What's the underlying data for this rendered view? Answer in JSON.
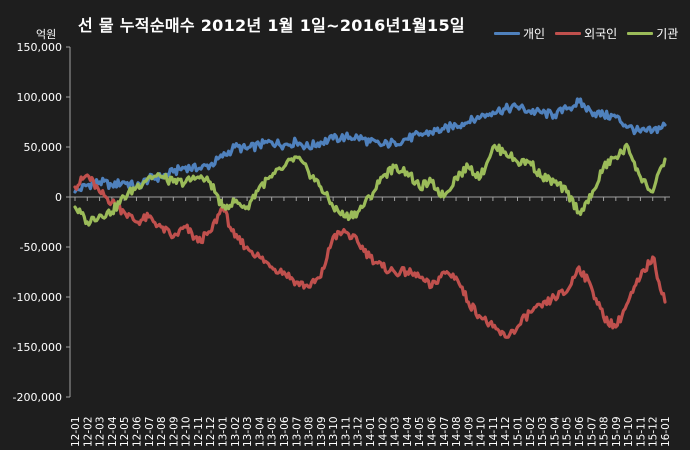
{
  "chart_data": {
    "type": "line",
    "title": "선 물 누적순매수 2012년 1월 1일~2016년1월15일",
    "y_unit": "억원",
    "ylim": [
      -200000,
      150000
    ],
    "y_ticks": [
      150000,
      100000,
      50000,
      0,
      -50000,
      -100000,
      -150000,
      -200000
    ],
    "y_tick_labels": [
      "150,000",
      "100,000",
      "50,000",
      "0",
      "-50,000",
      "-100,000",
      "-150,000",
      "-200,000"
    ],
    "legend_position": "top-right",
    "grid": false,
    "categories": [
      "12-01",
      "12-02",
      "12-03",
      "12-04",
      "12-05",
      "12-06",
      "12-07",
      "12-08",
      "12-09",
      "12-10",
      "12-11",
      "12-12",
      "13-01",
      "13-02",
      "13-03",
      "13-04",
      "13-05",
      "13-06",
      "13-07",
      "13-08",
      "13-09",
      "13-10",
      "13-11",
      "13-12",
      "14-01",
      "14-02",
      "14-03",
      "14-04",
      "14-05",
      "14-06",
      "14-07",
      "14-08",
      "14-09",
      "14-10",
      "14-11",
      "14-12",
      "15-01",
      "15-02",
      "15-03",
      "15-04",
      "15-05",
      "15-06",
      "15-07",
      "15-08",
      "15-09",
      "15-10",
      "15-11",
      "15-12",
      "16-01"
    ],
    "series": [
      {
        "name": "개인",
        "color": "#4f81bd",
        "values": [
          5000,
          12000,
          15000,
          12000,
          15000,
          10000,
          18000,
          20000,
          25000,
          30000,
          28000,
          32000,
          40000,
          50000,
          48000,
          52000,
          55000,
          52000,
          55000,
          50000,
          55000,
          58000,
          60000,
          60000,
          55000,
          52000,
          55000,
          58000,
          62000,
          65000,
          68000,
          72000,
          75000,
          80000,
          85000,
          88000,
          90000,
          86000,
          84000,
          82000,
          88000,
          95000,
          85000,
          82000,
          80000,
          70000,
          65000,
          66000,
          72000
        ]
      },
      {
        "name": "외국인",
        "color": "#c0504d",
        "values": [
          10000,
          22000,
          5000,
          -5000,
          -15000,
          -25000,
          -20000,
          -30000,
          -40000,
          -30000,
          -45000,
          -35000,
          -10000,
          -40000,
          -50000,
          -60000,
          -70000,
          -75000,
          -85000,
          -90000,
          -80000,
          -40000,
          -35000,
          -45000,
          -60000,
          -70000,
          -75000,
          -75000,
          -80000,
          -90000,
          -75000,
          -80000,
          -105000,
          -120000,
          -130000,
          -140000,
          -130000,
          -115000,
          -110000,
          -100000,
          -95000,
          -70000,
          -90000,
          -120000,
          -130000,
          -105000,
          -80000,
          -60000,
          -105000
        ]
      },
      {
        "name": "기관",
        "color": "#9bbb59",
        "values": [
          -10000,
          -25000,
          -18000,
          -15000,
          0,
          10000,
          20000,
          20000,
          15000,
          15000,
          20000,
          15000,
          -10000,
          -5000,
          -10000,
          10000,
          20000,
          30000,
          40000,
          25000,
          10000,
          -10000,
          -20000,
          -15000,
          0,
          20000,
          30000,
          25000,
          10000,
          15000,
          0,
          20000,
          30000,
          20000,
          50000,
          45000,
          35000,
          35000,
          20000,
          15000,
          5000,
          -15000,
          0,
          30000,
          40000,
          50000,
          20000,
          5000,
          38000
        ]
      }
    ]
  }
}
